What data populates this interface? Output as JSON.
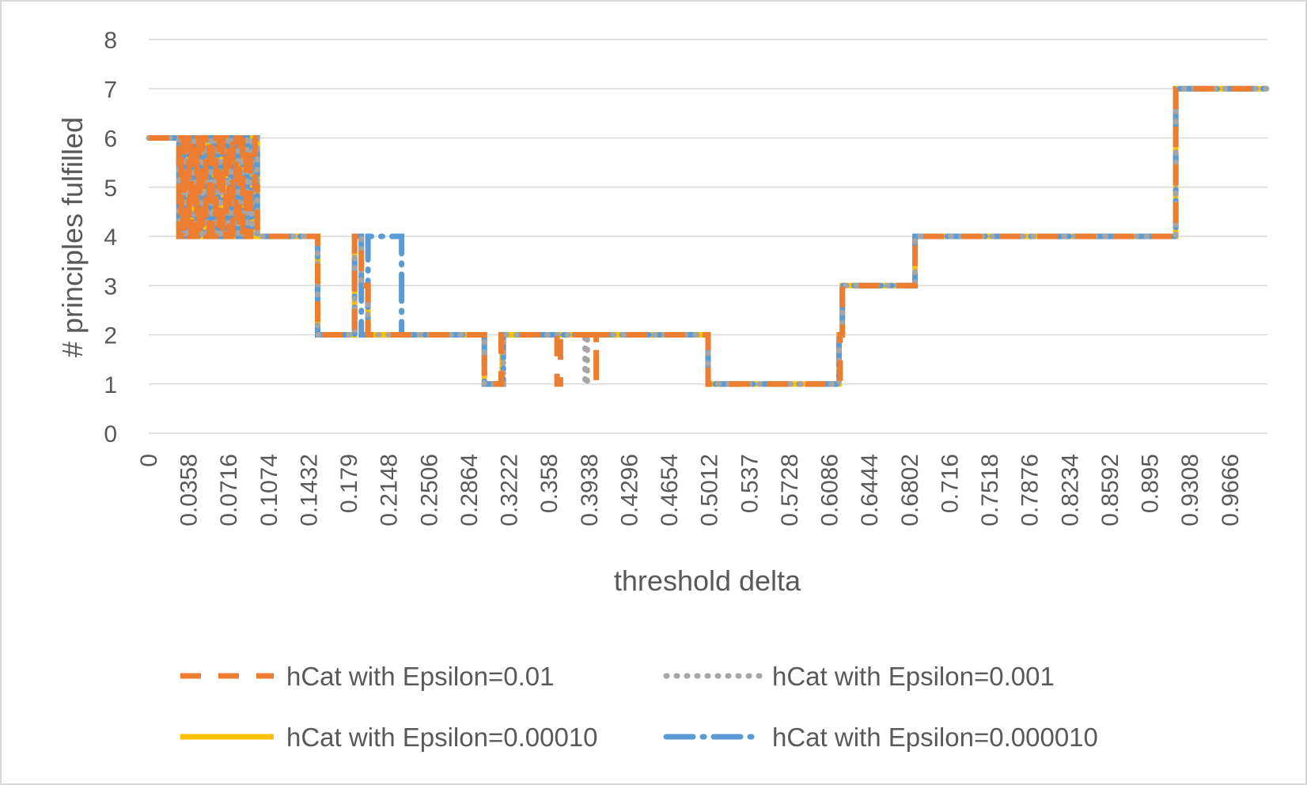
{
  "chart_data": {
    "type": "line",
    "xlabel": "threshold delta",
    "ylabel": "# principles fulfilled",
    "xlim": [
      0,
      1.0
    ],
    "ylim": [
      0,
      8
    ],
    "y_ticks": [
      "0",
      "1",
      "2",
      "3",
      "4",
      "5",
      "6",
      "7",
      "8"
    ],
    "x_ticks": [
      "0",
      "0.0358",
      "0.0716",
      "0.1074",
      "0.1432",
      "0.179",
      "0.2148",
      "0.2506",
      "0.2864",
      "0.3222",
      "0.358",
      "0.3938",
      "0.4296",
      "0.4654",
      "0.5012",
      "0.537",
      "0.5728",
      "0.6086",
      "0.6444",
      "0.6802",
      "0.716",
      "0.7518",
      "0.7876",
      "0.8234",
      "0.8592",
      "0.895",
      "0.9308",
      "0.9666"
    ],
    "grid": true,
    "legend_position": "bottom",
    "series": [
      {
        "name": "hCat with Epsilon=0.01",
        "color": "#ED7D31",
        "style": "dashed",
        "x": [
          0,
          0.027,
          0.027,
          0.029,
          0.029,
          0.031,
          0.031,
          0.034,
          0.034,
          0.036,
          0.036,
          0.038,
          0.038,
          0.041,
          0.041,
          0.043,
          0.043,
          0.045,
          0.045,
          0.048,
          0.048,
          0.051,
          0.051,
          0.054,
          0.054,
          0.057,
          0.057,
          0.06,
          0.06,
          0.063,
          0.063,
          0.066,
          0.066,
          0.069,
          0.069,
          0.072,
          0.072,
          0.075,
          0.075,
          0.078,
          0.078,
          0.081,
          0.081,
          0.084,
          0.084,
          0.087,
          0.087,
          0.091,
          0.091,
          0.095,
          0.095,
          0.097,
          0.097,
          0.151,
          0.151,
          0.184,
          0.184,
          0.19,
          0.19,
          0.196,
          0.196,
          0.226,
          0.226,
          0.3,
          0.3,
          0.315,
          0.315,
          0.33,
          0.33,
          0.365,
          0.365,
          0.368,
          0.368,
          0.4,
          0.4,
          0.4,
          0.4,
          0.5,
          0.5,
          0.618,
          0.618,
          0.62,
          0.62,
          0.685,
          0.685,
          0.918,
          0.918,
          1.0
        ],
        "y": [
          6,
          6,
          4,
          4,
          6,
          6,
          4,
          4,
          6,
          6,
          4,
          4,
          6,
          6,
          4,
          4,
          6,
          6,
          4,
          4,
          6,
          6,
          4,
          4,
          6,
          6,
          4,
          4,
          6,
          6,
          4,
          4,
          6,
          6,
          4,
          4,
          6,
          6,
          4,
          4,
          6,
          6,
          4,
          4,
          6,
          6,
          4,
          4,
          6,
          6,
          5,
          5,
          4,
          4,
          2,
          2,
          4,
          4,
          3,
          3,
          2,
          2,
          2,
          2,
          1,
          1,
          2,
          2,
          2,
          2,
          1,
          1,
          2,
          2,
          1,
          1,
          2,
          2,
          1,
          1,
          2,
          2,
          3,
          3,
          4,
          4,
          7,
          7
        ]
      },
      {
        "name": "hCat with Epsilon=0.001",
        "color": "#A5A5A5",
        "style": "dotted",
        "x": [
          0,
          0.027,
          0.027,
          0.03,
          0.03,
          0.033,
          0.033,
          0.036,
          0.036,
          0.04,
          0.04,
          0.044,
          0.044,
          0.048,
          0.048,
          0.052,
          0.052,
          0.056,
          0.056,
          0.06,
          0.06,
          0.064,
          0.064,
          0.068,
          0.068,
          0.072,
          0.072,
          0.076,
          0.076,
          0.08,
          0.08,
          0.084,
          0.084,
          0.088,
          0.088,
          0.092,
          0.092,
          0.097,
          0.097,
          0.151,
          0.151,
          0.184,
          0.184,
          0.19,
          0.19,
          0.196,
          0.196,
          0.226,
          0.226,
          0.3,
          0.3,
          0.317,
          0.317,
          0.39,
          0.39,
          0.392,
          0.392,
          0.5,
          0.5,
          0.617,
          0.617,
          0.62,
          0.62,
          0.685,
          0.685,
          0.918,
          0.918,
          1.0
        ],
        "y": [
          6,
          6,
          4,
          4,
          6,
          6,
          4,
          4,
          6,
          6,
          4,
          4,
          6,
          6,
          4,
          4,
          6,
          6,
          4,
          4,
          6,
          6,
          4,
          4,
          6,
          6,
          4,
          4,
          6,
          6,
          4,
          4,
          6,
          6,
          4,
          4,
          6,
          6,
          4,
          4,
          2,
          2,
          4,
          4,
          3,
          3,
          2,
          2,
          2,
          2,
          1,
          1,
          2,
          2,
          1,
          1,
          2,
          2,
          1,
          1,
          2,
          2,
          3,
          3,
          4,
          4,
          7,
          7
        ]
      },
      {
        "name": "hCat with Epsilon=0.00010",
        "color": "#FFC000",
        "style": "solid",
        "x": [
          0,
          0.027,
          0.027,
          0.03,
          0.03,
          0.033,
          0.033,
          0.036,
          0.036,
          0.04,
          0.04,
          0.044,
          0.044,
          0.048,
          0.048,
          0.052,
          0.052,
          0.056,
          0.056,
          0.06,
          0.06,
          0.064,
          0.064,
          0.068,
          0.068,
          0.072,
          0.072,
          0.076,
          0.076,
          0.08,
          0.08,
          0.084,
          0.084,
          0.088,
          0.088,
          0.092,
          0.092,
          0.097,
          0.097,
          0.151,
          0.151,
          0.184,
          0.184,
          0.19,
          0.19,
          0.196,
          0.196,
          0.226,
          0.226,
          0.3,
          0.3,
          0.316,
          0.316,
          0.5,
          0.5,
          0.617,
          0.617,
          0.62,
          0.62,
          0.685,
          0.685,
          0.918,
          0.918,
          1.0
        ],
        "y": [
          6,
          6,
          4,
          4,
          6,
          6,
          4,
          4,
          6,
          6,
          4,
          4,
          6,
          6,
          4,
          4,
          6,
          6,
          4,
          4,
          6,
          6,
          4,
          4,
          6,
          6,
          4,
          4,
          6,
          6,
          4,
          4,
          6,
          6,
          4,
          4,
          6,
          6,
          4,
          4,
          2,
          2,
          4,
          4,
          3,
          3,
          2,
          2,
          2,
          2,
          1,
          1,
          2,
          2,
          1,
          1,
          2,
          2,
          3,
          3,
          4,
          4,
          7,
          7
        ]
      },
      {
        "name": "hCat with Epsilon=0.000010",
        "color": "#5B9BD5",
        "style": "dash-dot",
        "x": [
          0,
          0.027,
          0.027,
          0.029,
          0.029,
          0.031,
          0.031,
          0.034,
          0.034,
          0.037,
          0.037,
          0.04,
          0.04,
          0.043,
          0.043,
          0.046,
          0.046,
          0.05,
          0.05,
          0.054,
          0.054,
          0.058,
          0.058,
          0.062,
          0.062,
          0.066,
          0.066,
          0.07,
          0.07,
          0.073,
          0.073,
          0.076,
          0.076,
          0.08,
          0.08,
          0.084,
          0.084,
          0.088,
          0.088,
          0.092,
          0.092,
          0.097,
          0.097,
          0.151,
          0.151,
          0.184,
          0.184,
          0.19,
          0.19,
          0.196,
          0.196,
          0.226,
          0.226,
          0.3,
          0.3,
          0.317,
          0.317,
          0.5,
          0.5,
          0.617,
          0.617,
          0.62,
          0.62,
          0.685,
          0.685,
          0.918,
          0.918,
          1.0
        ],
        "y": [
          6,
          6,
          4,
          4,
          6,
          6,
          4,
          4,
          6,
          6,
          4,
          4,
          6,
          6,
          4,
          4,
          6,
          6,
          4,
          4,
          6,
          6,
          4,
          4,
          6,
          6,
          4,
          4,
          6,
          6,
          4,
          4,
          6,
          6,
          4,
          4,
          6,
          6,
          4,
          4,
          6,
          6,
          4,
          4,
          2,
          2,
          4,
          4,
          2,
          2,
          4,
          4,
          2,
          2,
          1,
          1,
          2,
          2,
          1,
          1,
          2,
          2,
          3,
          3,
          4,
          4,
          7,
          7
        ]
      }
    ]
  }
}
